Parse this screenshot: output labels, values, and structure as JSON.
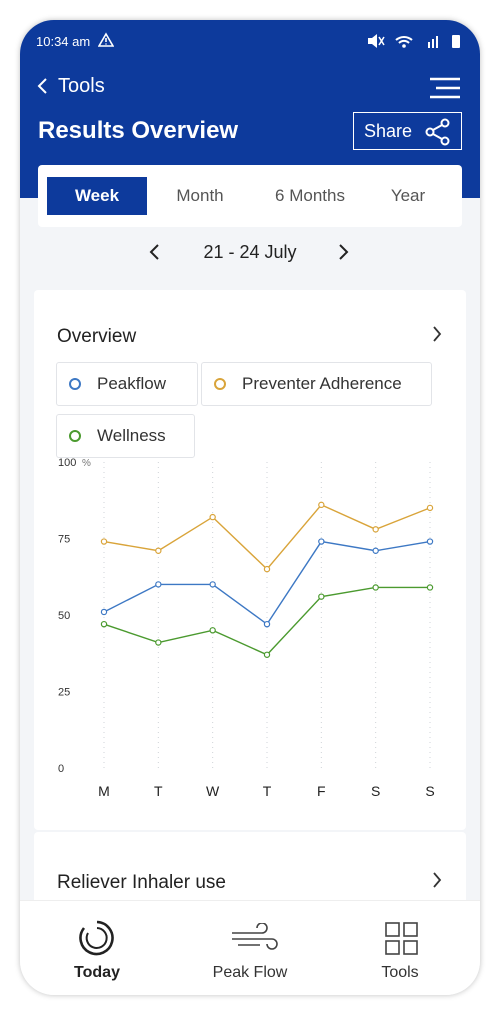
{
  "status_bar": {
    "time": "10:34 am"
  },
  "header": {
    "back": "Tools",
    "title": "Results Overview",
    "share": "Share"
  },
  "tabs": [
    "Week",
    "Month",
    "6 Months",
    "Year"
  ],
  "date_range": "21 - 24 July",
  "overview": {
    "title": "Overview"
  },
  "chart_data": {
    "type": "line",
    "categories": [
      "M",
      "T",
      "W",
      "T",
      "F",
      "S",
      "S"
    ],
    "series": [
      {
        "name": "Peakflow",
        "color": "#3d78c4",
        "values": [
          51,
          60,
          60,
          47,
          74,
          71,
          74
        ]
      },
      {
        "name": "Preventer Adherence",
        "color": "#d9a43a",
        "values": [
          74,
          71,
          82,
          65,
          86,
          78,
          85
        ]
      },
      {
        "name": "Wellness",
        "color": "#4b9a2f",
        "values": [
          47,
          41,
          45,
          37,
          56,
          59,
          59
        ]
      }
    ],
    "ylim": [
      0,
      100
    ],
    "yticks": [
      0,
      25,
      50,
      75,
      100
    ],
    "y_unit": "%"
  },
  "reliever": {
    "title": "Reliever Inhaler use"
  },
  "nav": [
    "Today",
    "Peak Flow",
    "Tools"
  ]
}
